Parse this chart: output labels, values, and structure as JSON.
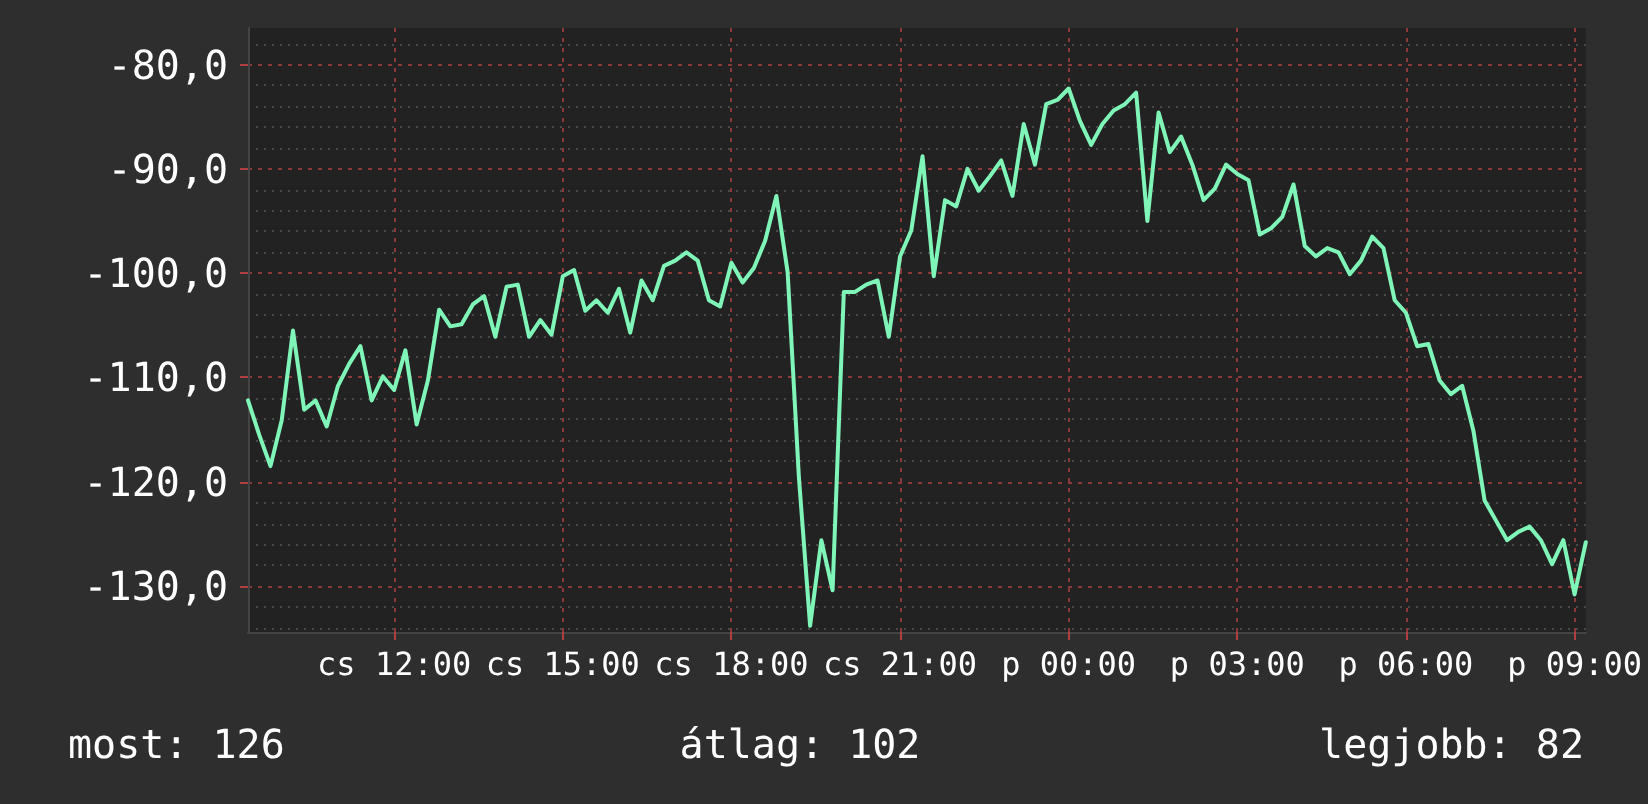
{
  "chart_data": {
    "type": "line",
    "line_style": "solid",
    "marker": "none",
    "grid": true,
    "categories": [
      null,
      null,
      null,
      null,
      null,
      null,
      null,
      null,
      null,
      null,
      null,
      null,
      null,
      "cs 12:00",
      null,
      null,
      null,
      null,
      null,
      null,
      null,
      null,
      null,
      null,
      null,
      null,
      null,
      null,
      "cs 15:00",
      null,
      null,
      null,
      null,
      null,
      null,
      null,
      null,
      null,
      null,
      null,
      null,
      null,
      null,
      "cs 18:00",
      null,
      null,
      null,
      null,
      null,
      null,
      null,
      null,
      null,
      null,
      null,
      null,
      null,
      null,
      "cs 21:00",
      null,
      null,
      null,
      null,
      null,
      null,
      null,
      null,
      null,
      null,
      null,
      null,
      null,
      null,
      "p 00:00",
      null,
      null,
      null,
      null,
      null,
      null,
      null,
      null,
      null,
      null,
      null,
      null,
      null,
      null,
      "p 03:00",
      null,
      null,
      null,
      null,
      null,
      null,
      null,
      null,
      null,
      null,
      null,
      null,
      null,
      null,
      "p 06:00",
      null,
      null,
      null,
      null,
      null,
      null,
      null,
      null,
      null,
      null,
      null,
      null,
      null,
      null,
      "p 09:00",
      null
    ],
    "ylim": [
      -134.4,
      -76.5
    ],
    "yticks": [
      {
        "value": -130,
        "label": "-130,0"
      },
      {
        "value": -120,
        "label": "-120,0"
      },
      {
        "value": -110,
        "label": "-110,0"
      },
      {
        "value": -100,
        "label": "-100,0"
      },
      {
        "value": -90,
        "label": "-90,0"
      },
      {
        "value": -80,
        "label": "-80,0"
      }
    ],
    "annotations": [
      "most: 126",
      "átlag: 102",
      "legjobb: 82"
    ],
    "series": [
      {
        "color": "#7ff5b8",
        "values": [
          -112.2,
          -115.5,
          -118.5,
          -114.1,
          -105.5,
          -113.1,
          -112.2,
          -114.7,
          -110.8,
          -108.7,
          -107.0,
          -112.2,
          -109.9,
          -111.2,
          -107.4,
          -114.5,
          -110.3,
          -103.5,
          -105.1,
          -104.9,
          -103.0,
          -102.2,
          -106.1,
          -101.3,
          -101.1,
          -106.1,
          -104.5,
          -105.9,
          -100.3,
          -99.7,
          -103.6,
          -102.6,
          -103.8,
          -101.5,
          -105.7,
          -100.7,
          -102.6,
          -99.3,
          -98.8,
          -98.0,
          -98.8,
          -102.6,
          -103.2,
          -99.0,
          -100.9,
          -99.5,
          -96.9,
          -92.6,
          -99.9,
          -119.5,
          -133.8,
          -125.6,
          -130.4,
          -101.8,
          -101.8,
          -101.1,
          -100.7,
          -106.1,
          -98.4,
          -95.9,
          -88.8,
          -100.3,
          -93.0,
          -93.6,
          -90.0,
          -92.1,
          -90.7,
          -89.2,
          -92.6,
          -85.7,
          -89.6,
          -83.8,
          -83.4,
          -82.3,
          -85.4,
          -87.7,
          -85.7,
          -84.4,
          -83.8,
          -82.7,
          -95.0,
          -84.6,
          -88.4,
          -86.9,
          -89.6,
          -93.0,
          -91.9,
          -89.6,
          -90.5,
          -91.1,
          -96.3,
          -95.7,
          -94.6,
          -91.5,
          -97.4,
          -98.4,
          -97.6,
          -98.0,
          -100.1,
          -98.8,
          -96.5,
          -97.6,
          -102.6,
          -103.8,
          -107.0,
          -106.8,
          -110.3,
          -111.6,
          -110.8,
          -115.1,
          -121.8,
          -123.7,
          -125.6,
          -124.8,
          -124.3,
          -125.6,
          -127.9,
          -125.6,
          -130.8,
          -125.8
        ]
      }
    ]
  }
}
